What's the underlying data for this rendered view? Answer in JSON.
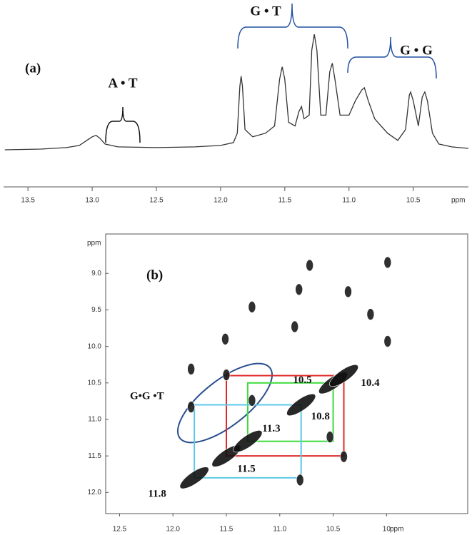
{
  "chart_data": [
    {
      "type": "line",
      "panel_label": "(a)",
      "xlabel": "ppm",
      "annotations": [
        "A • T",
        "G • T",
        "G • G"
      ],
      "x": [
        13.68,
        13.4,
        13.2,
        13.1,
        13.05,
        13.0,
        12.97,
        12.94,
        12.9,
        12.8,
        12.5,
        12.2,
        12.0,
        11.9,
        11.87,
        11.85,
        11.84,
        11.83,
        11.81,
        11.75,
        11.65,
        11.58,
        11.54,
        11.52,
        11.5,
        11.47,
        11.42,
        11.39,
        11.37,
        11.35,
        11.31,
        11.29,
        11.27,
        11.25,
        11.22,
        11.18,
        11.15,
        11.13,
        11.11,
        11.07,
        11.0,
        10.95,
        10.9,
        10.88,
        10.85,
        10.8,
        10.7,
        10.62,
        10.56,
        10.53,
        10.52,
        10.5,
        10.46,
        10.43,
        10.41,
        10.39,
        10.35,
        10.3,
        10.2,
        10.07
      ],
      "values": [
        2,
        3,
        5,
        8,
        14,
        20,
        22,
        18,
        10,
        6,
        5,
        6,
        8,
        12,
        25,
        90,
        104,
        90,
        30,
        20,
        25,
        35,
        100,
        117,
        100,
        40,
        35,
        55,
        62,
        45,
        50,
        140,
        162,
        140,
        50,
        50,
        110,
        122,
        100,
        50,
        50,
        70,
        85,
        88,
        70,
        45,
        25,
        15,
        30,
        78,
        82,
        70,
        35,
        75,
        82,
        70,
        25,
        10,
        6,
        4
      ],
      "color": "#333333",
      "xlim": [
        13.69,
        10.07
      ],
      "ylim": [
        0,
        170
      ],
      "xticks": [
        13.5,
        {
          "value": 13.0,
          "label": "13.0"
        },
        12.5,
        {
          "value": 12.0,
          "label": "12.0"
        },
        11.5,
        {
          "value": 11.0,
          "label": "11.0"
        },
        10.5
      ]
    },
    {
      "type": "scatter",
      "panel_label": "(b)",
      "xlabel": "ppm",
      "ylabel": "ppm",
      "annotations": [
        "G•G •T"
      ],
      "series": [
        {
          "color": "#1a1a1a",
          "x": [
            10.72,
            9.99,
            11.26,
            10.82,
            10.36,
            11.51,
            10.86,
            10.15,
            9.99,
            11.83,
            11.5,
            11.26,
            10.4,
            10.53,
            11.83,
            10.81
          ],
          "y": [
            8.89,
            8.85,
            9.46,
            9.22,
            9.25,
            9.9,
            9.73,
            9.56,
            9.93,
            10.31,
            10.39,
            10.74,
            11.51,
            11.24,
            10.83,
            11.83
          ]
        },
        {
          "color": "#111111",
          "x": [
            11.8,
            11.5,
            11.3,
            10.8,
            10.5,
            10.4
          ],
          "y": [
            11.8,
            11.5,
            11.3,
            10.8,
            10.5,
            10.4
          ]
        }
      ],
      "boxes": [
        {
          "color": "#e02a2a",
          "x": [
            11.5,
            10.4
          ],
          "y": [
            10.4,
            11.5
          ]
        },
        {
          "color": "#3ddc3d",
          "x": [
            11.3,
            10.5
          ],
          "y": [
            10.5,
            11.3
          ]
        },
        {
          "color": "#5cc8e8",
          "x": [
            11.8,
            10.8
          ],
          "y": [
            10.8,
            11.8
          ]
        }
      ],
      "xlim": [
        12.63,
        9.24
      ],
      "ylim": [
        8.46,
        12.29
      ],
      "xticks": [
        12.5,
        {
          "value": 12.0,
          "label": "12.0"
        },
        11.5,
        {
          "value": 11.0,
          "label": "11.0"
        },
        10.5,
        10
      ],
      "yticks": [
        {
          "value": 9.0,
          "label": "9.0"
        },
        9.5,
        {
          "value": 10.0,
          "label": "10.0"
        },
        10.5,
        {
          "value": 11.0,
          "label": "11.0"
        },
        11.5,
        {
          "value": 12.0,
          "label": "12.0"
        }
      ]
    }
  ]
}
